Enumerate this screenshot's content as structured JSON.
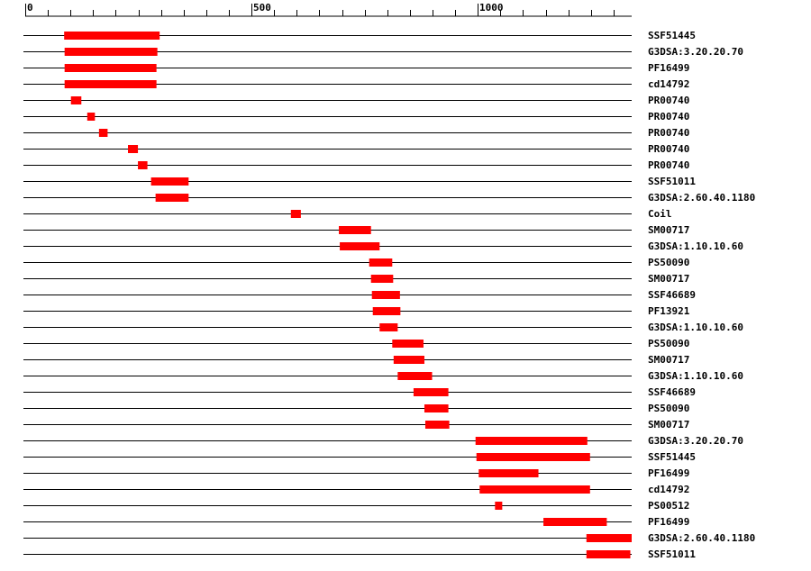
{
  "chart_data": {
    "type": "domain-map",
    "axis": {
      "min": 0,
      "max": 1340,
      "major_ticks": [
        0,
        500,
        1000
      ],
      "minor_step": 50
    },
    "bar_color": "#ff0000",
    "tracks": [
      {
        "label": "SSF51445",
        "start": 86,
        "end": 297
      },
      {
        "label": "G3DSA:3.20.20.70",
        "start": 87,
        "end": 292
      },
      {
        "label": "PF16499",
        "start": 87,
        "end": 290
      },
      {
        "label": "cd14792",
        "start": 87,
        "end": 290
      },
      {
        "label": "PR00740",
        "start": 101,
        "end": 124
      },
      {
        "label": "PR00740",
        "start": 137,
        "end": 154
      },
      {
        "label": "PR00740",
        "start": 163,
        "end": 182
      },
      {
        "label": "PR00740",
        "start": 227,
        "end": 249
      },
      {
        "label": "PR00740",
        "start": 249,
        "end": 270
      },
      {
        "label": "SSF51011",
        "start": 278,
        "end": 361
      },
      {
        "label": "G3DSA:2.60.40.1180",
        "start": 288,
        "end": 361
      },
      {
        "label": "Coil",
        "start": 587,
        "end": 609
      },
      {
        "label": "SM00717",
        "start": 693,
        "end": 764
      },
      {
        "label": "G3DSA:1.10.10.60",
        "start": 695,
        "end": 783
      },
      {
        "label": "PS50090",
        "start": 760,
        "end": 811
      },
      {
        "label": "SM00717",
        "start": 764,
        "end": 813
      },
      {
        "label": "SSF46689",
        "start": 766,
        "end": 828
      },
      {
        "label": "PF13921",
        "start": 768,
        "end": 829
      },
      {
        "label": "G3DSA:1.10.10.60",
        "start": 783,
        "end": 823
      },
      {
        "label": "PS50090",
        "start": 811,
        "end": 880
      },
      {
        "label": "SM00717",
        "start": 814,
        "end": 882
      },
      {
        "label": "G3DSA:1.10.10.60",
        "start": 823,
        "end": 899
      },
      {
        "label": "SSF46689",
        "start": 858,
        "end": 935
      },
      {
        "label": "PS50090",
        "start": 882,
        "end": 935
      },
      {
        "label": "SM00717",
        "start": 884,
        "end": 937
      },
      {
        "label": "G3DSA:3.20.20.70",
        "start": 995,
        "end": 1242
      },
      {
        "label": "SSF51445",
        "start": 997,
        "end": 1248
      },
      {
        "label": "PF16499",
        "start": 1002,
        "end": 1134
      },
      {
        "label": "cd14792",
        "start": 1004,
        "end": 1248
      },
      {
        "label": "PS00512",
        "start": 1038,
        "end": 1054
      },
      {
        "label": "PF16499",
        "start": 1145,
        "end": 1285
      },
      {
        "label": "G3DSA:2.60.40.1180",
        "start": 1240,
        "end": 1340
      },
      {
        "label": "SSF51011",
        "start": 1240,
        "end": 1337
      }
    ]
  }
}
